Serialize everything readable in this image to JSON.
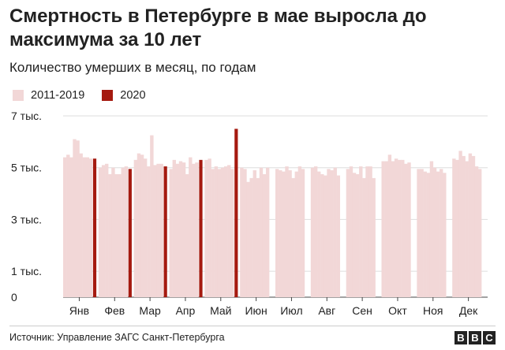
{
  "title": "Смертность в Петербурге в мае выросла до максимума за 10 лет",
  "subtitle": "Количество умерших в месяц, по годам",
  "legend": [
    {
      "label": "2011-2019",
      "color": "#f2d7d7"
    },
    {
      "label": "2020",
      "color": "#a51a10"
    }
  ],
  "source": "Источник: Управление ЗАГС Санкт-Петербурга",
  "logo": {
    "letters": [
      "B",
      "B",
      "C"
    ]
  },
  "chart_data": {
    "type": "bar",
    "title": "Смертность в Петербурге в мае выросла до максимума за 10 лет",
    "subtitle": "Количество умерших в месяц, по годам",
    "xlabel": "",
    "ylabel": "",
    "ylim": [
      0,
      7000
    ],
    "grid": true,
    "legend_position": "top-left",
    "y_ticks": [
      {
        "value": 0,
        "label": "0"
      },
      {
        "value": 1000,
        "label": "1 тыс."
      },
      {
        "value": 3000,
        "label": "3 тыс."
      },
      {
        "value": 5000,
        "label": "5 тыс."
      },
      {
        "value": 7000,
        "label": "7 тыс."
      }
    ],
    "categories": [
      "Янв",
      "Фев",
      "Мар",
      "Апр",
      "Май",
      "Июн",
      "Июл",
      "Авг",
      "Сен",
      "Окт",
      "Ноя",
      "Дек"
    ],
    "series": [
      {
        "name": "2011-2019",
        "color": "#f2d7d7",
        "values": [
          [
            5400,
            5500,
            5400,
            6100,
            6050,
            5550,
            5400,
            5400,
            5350
          ],
          [
            5000,
            5100,
            5150,
            4750,
            5000,
            4750,
            4750,
            5000,
            5050
          ],
          [
            5300,
            5550,
            5500,
            5350,
            5050,
            6250,
            5100,
            5150,
            5150
          ],
          [
            4950,
            5300,
            5150,
            5250,
            5200,
            4750,
            5400,
            5150,
            5200
          ],
          [
            5300,
            5350,
            4950,
            5050,
            4950,
            5000,
            5050,
            5100,
            4950
          ],
          [
            5000,
            4950,
            4450,
            4600,
            4900,
            4600,
            5000,
            4750,
            5000
          ],
          [
            4950,
            4900,
            4850,
            5050,
            4900,
            4600,
            4850,
            5050,
            4950
          ],
          [
            5000,
            5050,
            4850,
            4750,
            4700,
            4950,
            4900,
            5000,
            4700
          ],
          [
            4950,
            5050,
            4800,
            4750,
            5050,
            4600,
            5050,
            5050,
            4600
          ],
          [
            5250,
            5250,
            5500,
            5250,
            5350,
            5300,
            5300,
            5150,
            5200
          ],
          [
            4950,
            4950,
            4850,
            4800,
            5250,
            5000,
            4850,
            4950,
            4800
          ],
          [
            5350,
            5300,
            5650,
            5450,
            5250,
            5550,
            5450,
            5050,
            4950
          ]
        ]
      },
      {
        "name": "2020",
        "color": "#a51a10",
        "values": [
          5350,
          4950,
          5050,
          5300,
          6500,
          null,
          null,
          null,
          null,
          null,
          null,
          null
        ]
      }
    ]
  }
}
